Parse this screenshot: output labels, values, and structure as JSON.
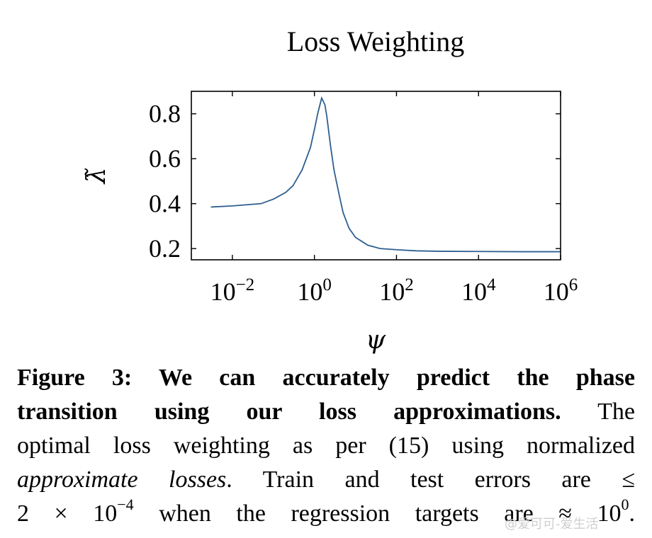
{
  "chart_data": {
    "type": "line",
    "title": "Loss Weighting",
    "xlabel": "ψ",
    "ylabel": "λ̃",
    "x_scale": "log",
    "xlim": [
      0.001,
      1000000
    ],
    "ylim": [
      0.15,
      0.9
    ],
    "x_ticks": [
      {
        "value": 0.01,
        "base": "10",
        "exp": "−2"
      },
      {
        "value": 1,
        "base": "10",
        "exp": "0"
      },
      {
        "value": 100,
        "base": "10",
        "exp": "2"
      },
      {
        "value": 10000,
        "base": "10",
        "exp": "4"
      },
      {
        "value": 1000000,
        "base": "10",
        "exp": "6"
      }
    ],
    "y_ticks": [
      {
        "value": 0.2,
        "label": "0.2"
      },
      {
        "value": 0.4,
        "label": "0.4"
      },
      {
        "value": 0.6,
        "label": "0.6"
      },
      {
        "value": 0.8,
        "label": "0.8"
      }
    ],
    "grid": false,
    "series": [
      {
        "color": "#2e5f91",
        "x": [
          0.003,
          0.01,
          0.05,
          0.1,
          0.2,
          0.3,
          0.5,
          0.8,
          1.0,
          1.2,
          1.5,
          1.8,
          2.0,
          2.2,
          2.5,
          3,
          4,
          5,
          7,
          10,
          20,
          40,
          100,
          300,
          1000,
          10000,
          100000,
          1000000
        ],
        "y": [
          0.385,
          0.39,
          0.4,
          0.42,
          0.45,
          0.48,
          0.55,
          0.65,
          0.73,
          0.8,
          0.87,
          0.84,
          0.79,
          0.73,
          0.65,
          0.55,
          0.44,
          0.36,
          0.29,
          0.25,
          0.215,
          0.2,
          0.195,
          0.19,
          0.188,
          0.187,
          0.186,
          0.186
        ]
      }
    ]
  },
  "caption": {
    "bold_1": "Figure 3: We can accurately predict the phase",
    "bold_2": "transition using our loss approximations.",
    "text_2": " The",
    "text_3": "optimal loss weighting as per (15) using normalized",
    "italic_4": "approximate losses",
    "text_4": ".  Train and test errors are ≤",
    "text_5a": "2 × 10",
    "sup_5a": "−4",
    "text_5b": " when the regression targets are ≈ 10",
    "sup_5b": "0",
    "text_5c": "."
  },
  "watermark": "@爱可可-爱生活",
  "colors": {
    "line": "#2e5f91",
    "axis": "#000000"
  }
}
